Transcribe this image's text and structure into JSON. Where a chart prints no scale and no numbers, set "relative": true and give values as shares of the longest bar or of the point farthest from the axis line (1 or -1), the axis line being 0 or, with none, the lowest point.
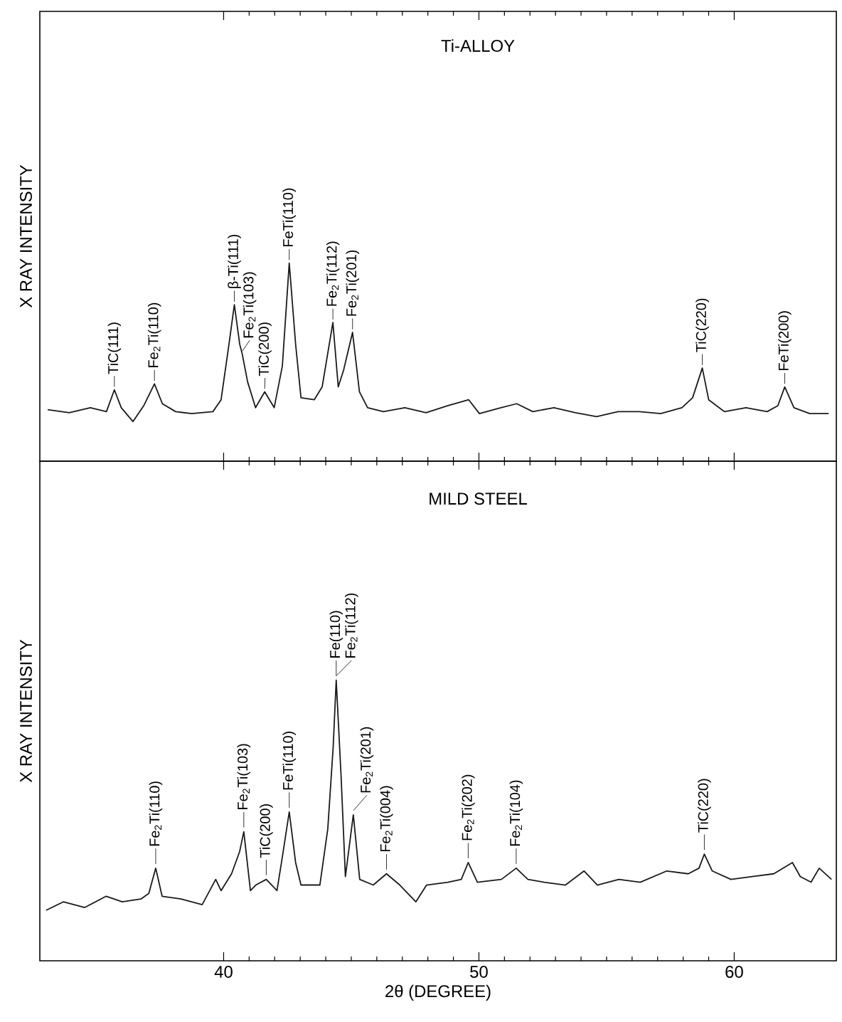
{
  "chart_data": [
    {
      "type": "line",
      "title": "Ti-ALLOY",
      "ylabel": "X RAY INTENSITY",
      "relative": true,
      "xlim": [
        32.8,
        64
      ],
      "xticks": [
        40,
        50,
        60
      ],
      "tick_labels": false,
      "x": [
        33.11,
        33.95,
        34.78,
        35.41,
        35.72,
        35.99,
        36.45,
        36.87,
        37.29,
        37.6,
        38.12,
        38.75,
        39.58,
        39.9,
        40.21,
        40.42,
        40.63,
        40.73,
        40.94,
        41.25,
        41.61,
        41.98,
        42.3,
        42.57,
        42.82,
        43.03,
        43.55,
        43.86,
        44.28,
        44.49,
        44.7,
        45.05,
        45.32,
        45.64,
        46.26,
        47.1,
        47.93,
        48.77,
        49.6,
        50.02,
        50.86,
        51.48,
        52.11,
        52.94,
        53.78,
        54.61,
        55.45,
        56.28,
        57.12,
        57.95,
        58.37,
        58.75,
        59.0,
        59.62,
        60.46,
        61.29,
        61.71,
        61.98,
        62.34,
        62.96,
        63.7
      ],
      "series": [
        {
          "color": "#1a1a1a",
          "values": [
            0.26,
            0.245,
            0.27,
            0.25,
            0.36,
            0.27,
            0.2,
            0.28,
            0.39,
            0.29,
            0.25,
            0.24,
            0.25,
            0.31,
            0.59,
            0.79,
            0.59,
            0.54,
            0.4,
            0.27,
            0.35,
            0.27,
            0.48,
            1.0,
            0.59,
            0.32,
            0.31,
            0.375,
            0.7,
            0.375,
            0.46,
            0.65,
            0.35,
            0.27,
            0.25,
            0.27,
            0.245,
            0.28,
            0.31,
            0.24,
            0.27,
            0.29,
            0.25,
            0.27,
            0.245,
            0.225,
            0.25,
            0.25,
            0.24,
            0.27,
            0.32,
            0.47,
            0.31,
            0.25,
            0.27,
            0.25,
            0.28,
            0.375,
            0.27,
            0.24,
            0.24
          ]
        }
      ],
      "annotations": [
        {
          "text": "TiC(111)",
          "x": 35.72,
          "y": 0.36
        },
        {
          "text": "Fe$_{2}$Ti(110)",
          "x": 37.29,
          "y": 0.39
        },
        {
          "text": "β-Ti(111)",
          "x": 40.42,
          "y": 0.79
        },
        {
          "text": "Fe$_{2}$Ti(103)",
          "x": 40.73,
          "y": 0.54
        },
        {
          "text": "TiC(200)",
          "x": 41.61,
          "y": 0.35
        },
        {
          "text": "FeTi(110)",
          "x": 42.57,
          "y": 1.0
        },
        {
          "text": "Fe$_{2}$Ti(112)",
          "x": 44.28,
          "y": 0.7
        },
        {
          "text": "Fe$_{2}$Ti(201)",
          "x": 45.05,
          "y": 0.65
        },
        {
          "text": "TiC(220)",
          "x": 58.75,
          "y": 0.47
        },
        {
          "text": "FeTi(200)",
          "x": 61.98,
          "y": 0.375
        }
      ]
    },
    {
      "type": "line",
      "title": "MILD STEEL",
      "xlabel": "2θ (DEGREE)",
      "ylabel": "X RAY INTENSITY",
      "relative": true,
      "xlim": [
        32.8,
        64
      ],
      "xticks": [
        40,
        50,
        60
      ],
      "tick_labels": "x",
      "x": [
        33.05,
        33.72,
        34.56,
        35.4,
        36.03,
        36.76,
        37.07,
        37.34,
        37.59,
        38.33,
        39.16,
        39.69,
        39.9,
        40.31,
        40.63,
        40.79,
        41.05,
        41.26,
        41.67,
        42.09,
        42.3,
        42.57,
        42.82,
        43.03,
        43.77,
        44.08,
        44.29,
        44.41,
        44.6,
        44.77,
        45.08,
        45.33,
        45.86,
        46.38,
        46.9,
        47.53,
        47.95,
        48.79,
        49.31,
        49.58,
        49.94,
        50.88,
        51.46,
        51.92,
        52.55,
        53.39,
        54.12,
        54.64,
        55.48,
        56.32,
        57.36,
        58.2,
        58.62,
        58.83,
        59.14,
        59.87,
        60.71,
        61.55,
        62.28,
        62.59,
        63.01,
        63.33,
        63.81
      ],
      "series": [
        {
          "color": "#1a1a1a",
          "values": [
            0.18,
            0.21,
            0.19,
            0.23,
            0.21,
            0.22,
            0.24,
            0.33,
            0.23,
            0.22,
            0.2,
            0.29,
            0.25,
            0.31,
            0.39,
            0.46,
            0.25,
            0.27,
            0.29,
            0.25,
            0.37,
            0.53,
            0.35,
            0.27,
            0.27,
            0.47,
            0.76,
            1.0,
            0.66,
            0.3,
            0.52,
            0.29,
            0.27,
            0.31,
            0.27,
            0.21,
            0.27,
            0.28,
            0.29,
            0.35,
            0.28,
            0.29,
            0.33,
            0.29,
            0.28,
            0.27,
            0.32,
            0.27,
            0.29,
            0.28,
            0.32,
            0.31,
            0.33,
            0.38,
            0.32,
            0.29,
            0.3,
            0.31,
            0.35,
            0.3,
            0.28,
            0.33,
            0.29
          ]
        }
      ],
      "annotations": [
        {
          "text": "Fe$_{2}$Ti(110)",
          "x": 37.34,
          "y": 0.33
        },
        {
          "text": "Fe$_{2}$Ti(103)",
          "x": 40.79,
          "y": 0.46
        },
        {
          "text": "TiC(200)",
          "x": 41.67,
          "y": 0.29
        },
        {
          "text": "FeTi(110)",
          "x": 42.57,
          "y": 0.53
        },
        {
          "text": "Fe(110)",
          "x": 44.41,
          "y": 1.0
        },
        {
          "text": "Fe$_{2}$Ti(112)",
          "x": 44.41,
          "y": 1.0
        },
        {
          "text": "Fe$_{2}$Ti(201)",
          "x": 45.08,
          "y": 0.52
        },
        {
          "text": "Fe$_{2}$Ti(004)",
          "x": 46.38,
          "y": 0.31
        },
        {
          "text": "Fe$_{2}$Ti(202)",
          "x": 49.58,
          "y": 0.35
        },
        {
          "text": "Fe$_{2}$Ti(104)",
          "x": 51.46,
          "y": 0.33
        },
        {
          "text": "TiC(220)",
          "x": 58.83,
          "y": 0.38
        }
      ]
    }
  ]
}
